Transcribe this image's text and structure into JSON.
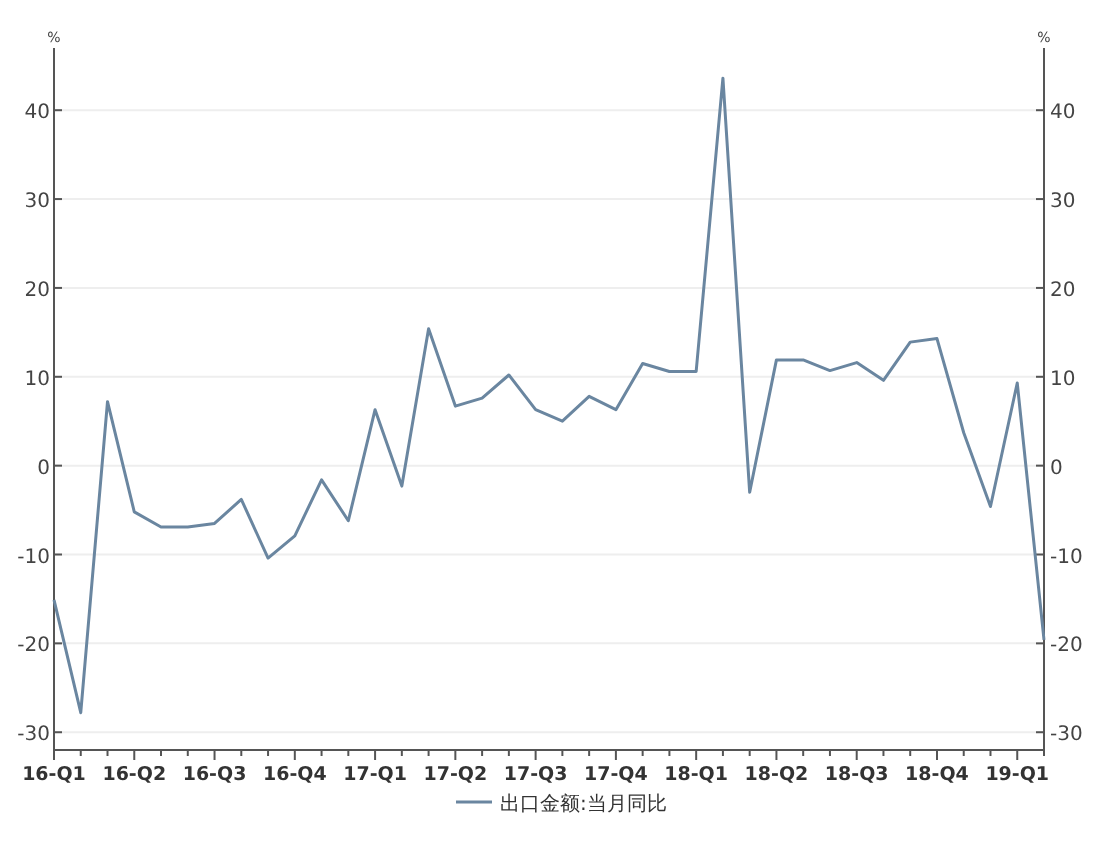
{
  "chart_data": {
    "type": "line",
    "categories": [
      "16-Q1",
      null,
      null,
      "16-Q2",
      null,
      null,
      "16-Q3",
      null,
      null,
      "16-Q4",
      null,
      null,
      "17-Q1",
      null,
      null,
      "17-Q2",
      null,
      null,
      "17-Q3",
      null,
      null,
      "17-Q4",
      null,
      null,
      "18-Q1",
      null,
      null,
      "18-Q2",
      null,
      null,
      "18-Q3",
      null,
      null,
      "18-Q4",
      null,
      null,
      "19-Q1",
      null
    ],
    "series": [
      {
        "name": "出口金额:当月同比",
        "color": "#6a86a0",
        "values": [
          -15.1,
          -27.8,
          7.2,
          -5.2,
          -6.9,
          -6.9,
          -6.5,
          -3.8,
          -10.4,
          -7.9,
          -1.6,
          -6.2,
          6.3,
          -2.3,
          15.4,
          6.7,
          7.6,
          10.2,
          6.3,
          5.0,
          7.8,
          6.3,
          11.5,
          10.6,
          10.6,
          43.6,
          -3.0,
          11.9,
          11.9,
          10.7,
          11.6,
          9.6,
          13.9,
          14.3,
          3.7,
          -4.6,
          9.3,
          -19.6
        ]
      }
    ],
    "ylabel": "%",
    "y2label": "%",
    "ylim": [
      -32,
      47
    ],
    "yticks": [
      -30,
      -20,
      -10,
      0,
      10,
      20,
      30,
      40
    ],
    "y2lim": [
      -32,
      47
    ],
    "y2ticks": [
      -30,
      -20,
      -10,
      0,
      10,
      20,
      30,
      40
    ],
    "grid": "y",
    "legend": "bottom",
    "line_style": "solid"
  }
}
